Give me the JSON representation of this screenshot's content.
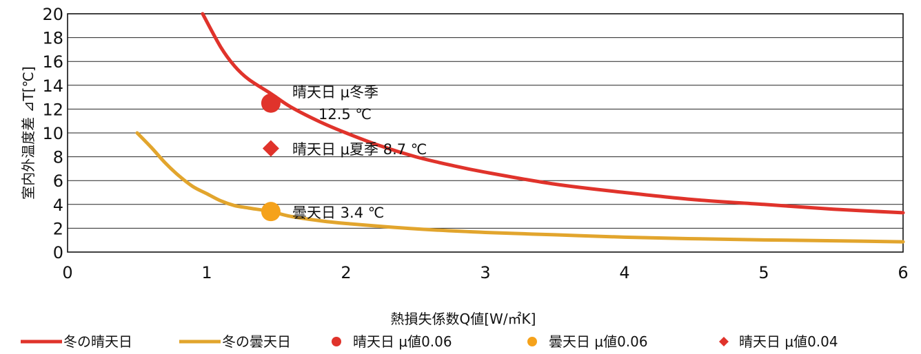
{
  "chart_data": {
    "type": "line",
    "xlabel": "熱損失係数Q値[W/㎡K]",
    "ylabel": "室内外温度差 ⊿T[℃]",
    "xlim": [
      0,
      6
    ],
    "ylim": [
      0,
      20
    ],
    "x_ticks": [
      "0",
      "1",
      "2",
      "3",
      "4",
      "5",
      "6"
    ],
    "y_ticks": [
      "0",
      "2",
      "4",
      "6",
      "8",
      "10",
      "12",
      "14",
      "16",
      "18",
      "20"
    ],
    "grid": "horizontal",
    "legend_position": "bottom",
    "series": [
      {
        "name": "冬の晴天日",
        "kind": "line",
        "color": "#e0332b",
        "x": [
          0.97,
          1.1,
          1.2,
          1.3,
          1.46,
          1.6,
          1.8,
          2.0,
          2.25,
          2.5,
          2.75,
          3.0,
          3.5,
          4.0,
          4.5,
          5.0,
          5.5,
          6.0
        ],
        "y": [
          20.0,
          17.2,
          15.6,
          14.5,
          13.3,
          12.2,
          11.0,
          10.0,
          8.9,
          8.0,
          7.3,
          6.7,
          5.7,
          5.0,
          4.4,
          4.0,
          3.6,
          3.3
        ]
      },
      {
        "name": "冬の曇天日",
        "kind": "line",
        "color": "#e2a52d",
        "x": [
          0.5,
          0.6,
          0.7,
          0.8,
          0.9,
          1.0,
          1.1,
          1.2,
          1.3,
          1.46,
          1.6,
          1.8,
          2.0,
          2.5,
          3.0,
          3.5,
          4.0,
          4.5,
          5.0,
          5.5,
          6.0
        ],
        "y": [
          10.0,
          8.8,
          7.5,
          6.4,
          5.5,
          4.9,
          4.3,
          3.9,
          3.7,
          3.4,
          3.0,
          2.65,
          2.4,
          1.95,
          1.65,
          1.45,
          1.25,
          1.12,
          1.02,
          0.95,
          0.86
        ]
      },
      {
        "name": "晴天日 μ値0.06",
        "kind": "point",
        "marker": "circle",
        "color": "#e0332b",
        "x": [
          1.46
        ],
        "y": [
          12.5
        ]
      },
      {
        "name": "曇天日 μ値0.06",
        "kind": "point",
        "marker": "circle",
        "color": "#f5a21b",
        "x": [
          1.46
        ],
        "y": [
          3.4
        ]
      },
      {
        "name": "晴天日 μ値0.04",
        "kind": "point",
        "marker": "diamond",
        "color": "#e0332b",
        "x": [
          1.46
        ],
        "y": [
          8.7
        ]
      }
    ],
    "annotations": [
      {
        "text": "晴天日 μ冬季"
      },
      {
        "text": "12.5 ℃"
      },
      {
        "text": "晴天日 μ夏季 8.7 ℃"
      },
      {
        "text": "曇天日 3.4 ℃"
      }
    ]
  }
}
